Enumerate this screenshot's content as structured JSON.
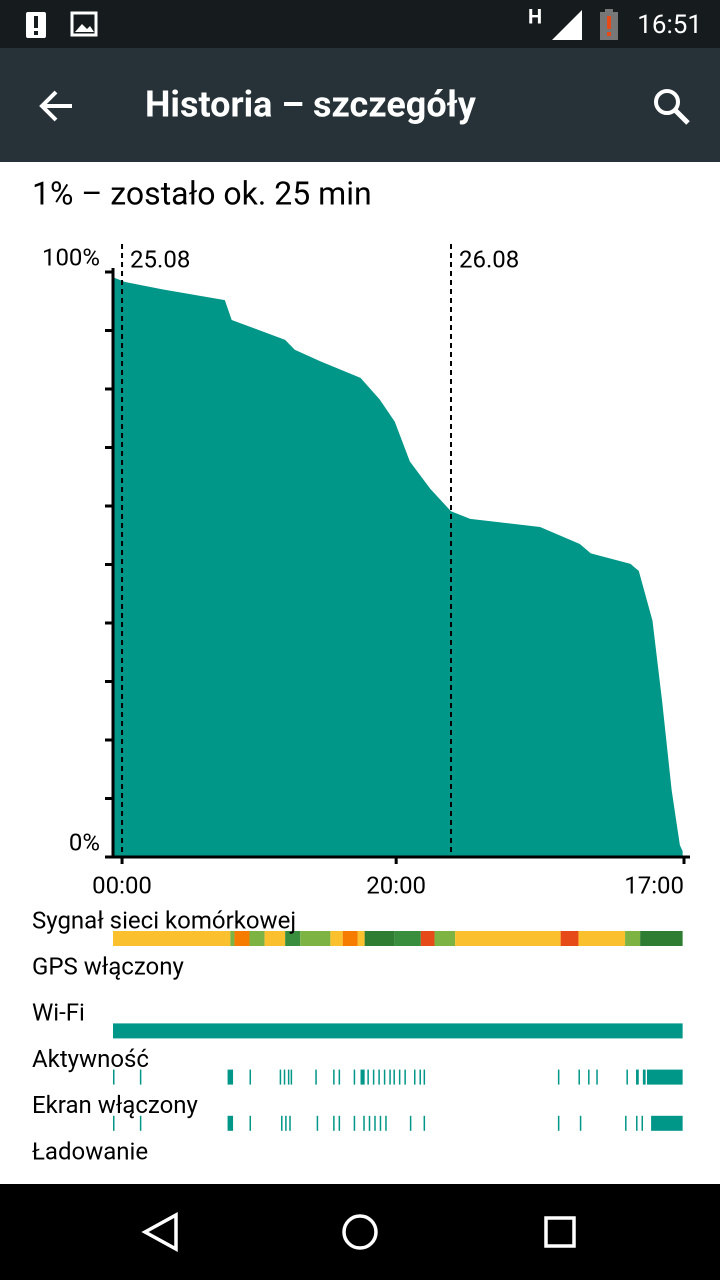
{
  "status_bar": {
    "network": "H",
    "time": "16:51"
  },
  "header": {
    "title": "Historia – szczegóły"
  },
  "summary": "1% – zostało ok. 25 min",
  "chart_data": {
    "type": "area",
    "color": "#009688",
    "x": [
      -0.66,
      0.22,
      3.0,
      7.5,
      8.0,
      11.9,
      12.6,
      14.5,
      17.4,
      18.8,
      19.9,
      21.0,
      22.5,
      24.0,
      25.4,
      30.5,
      33.4,
      34.2,
      37.1,
      37.7,
      38.7,
      39.4,
      40.1,
      40.7,
      40.9
    ],
    "values": [
      99.1,
      98.3,
      97.0,
      95.2,
      91.8,
      88.4,
      86.7,
      84.7,
      81.9,
      78.2,
      74.4,
      67.6,
      62.9,
      59.1,
      57.8,
      56.4,
      53.5,
      51.9,
      50.1,
      48.9,
      40.4,
      26.7,
      11.4,
      2.0,
      1
    ],
    "xlim": [
      -0.66,
      41.0
    ],
    "ylim": [
      0,
      100
    ],
    "xticks": [
      {
        "value": 0,
        "label": "00:00"
      },
      {
        "value": 20,
        "label": "20:00"
      },
      {
        "value": 41,
        "label": "17:00"
      }
    ],
    "yticks": [
      {
        "value": 0,
        "label": "0%"
      },
      {
        "value": 100,
        "label": "100%"
      }
    ],
    "yminor_ticks": [
      10,
      20,
      30,
      40,
      50,
      60,
      70,
      80,
      90
    ],
    "date_lines": [
      {
        "value": 0,
        "label": "25.08"
      },
      {
        "value": 24,
        "label": "26.08"
      }
    ],
    "tracks": [
      {
        "name": "Sygnał sieci komórkowej",
        "segments": [
          {
            "x": [
              -0.66,
              7.9
            ],
            "color": "#fbc02d"
          },
          {
            "x": [
              7.9,
              8.2
            ],
            "color": "#7cb342"
          },
          {
            "x": [
              8.2,
              9.3
            ],
            "color": "#f57c00"
          },
          {
            "x": [
              9.3,
              10.4
            ],
            "color": "#7cb342"
          },
          {
            "x": [
              10.4,
              11.9
            ],
            "color": "#fbc02d"
          },
          {
            "x": [
              11.9,
              13.0
            ],
            "color": "#388e3c"
          },
          {
            "x": [
              13.0,
              15.2
            ],
            "color": "#7cb342"
          },
          {
            "x": [
              15.2,
              16.1
            ],
            "color": "#fbc02d"
          },
          {
            "x": [
              16.1,
              17.2
            ],
            "color": "#f57c00"
          },
          {
            "x": [
              17.2,
              17.7
            ],
            "color": "#fbc02d"
          },
          {
            "x": [
              17.7,
              19.9
            ],
            "color": "#2e7d32"
          },
          {
            "x": [
              19.9,
              21.8
            ],
            "color": "#388e3c"
          },
          {
            "x": [
              21.8,
              22.8
            ],
            "color": "#e64a19"
          },
          {
            "x": [
              22.8,
              24.3
            ],
            "color": "#7cb342"
          },
          {
            "x": [
              24.3,
              32.0
            ],
            "color": "#fbc02d"
          },
          {
            "x": [
              32.0,
              33.3
            ],
            "color": "#e64a19"
          },
          {
            "x": [
              33.3,
              36.7
            ],
            "color": "#fbc02d"
          },
          {
            "x": [
              36.7,
              37.8
            ],
            "color": "#7cb342"
          },
          {
            "x": [
              37.8,
              40.9
            ],
            "color": "#2e7d32"
          }
        ]
      },
      {
        "name": "GPS włączony",
        "segments": []
      },
      {
        "name": "Wi-Fi",
        "segments": [
          {
            "x": [
              -0.66,
              40.9
            ],
            "color": "#009688"
          }
        ]
      },
      {
        "name": "Aktywność",
        "segments": [
          {
            "x": [
              -0.66,
              -0.55
            ],
            "color": "#009688"
          },
          {
            "x": [
              1.3,
              1.4
            ],
            "color": "#009688"
          },
          {
            "x": [
              7.7,
              8.1
            ],
            "color": "#009688"
          },
          {
            "x": [
              9.3,
              9.4
            ],
            "color": "#009688"
          },
          {
            "x": [
              11.5,
              11.6
            ],
            "color": "#009688"
          },
          {
            "x": [
              11.8,
              11.9
            ],
            "color": "#009688"
          },
          {
            "x": [
              12.1,
              12.2
            ],
            "color": "#009688"
          },
          {
            "x": [
              12.3,
              12.4
            ],
            "color": "#009688"
          },
          {
            "x": [
              14.1,
              14.2
            ],
            "color": "#009688"
          },
          {
            "x": [
              15.4,
              15.5
            ],
            "color": "#009688"
          },
          {
            "x": [
              15.8,
              15.9
            ],
            "color": "#009688"
          },
          {
            "x": [
              16.9,
              17.0
            ],
            "color": "#009688"
          },
          {
            "x": [
              17.4,
              17.7
            ],
            "color": "#009688"
          },
          {
            "x": [
              17.9,
              18.0
            ],
            "color": "#009688"
          },
          {
            "x": [
              18.3,
              18.4
            ],
            "color": "#009688"
          },
          {
            "x": [
              18.7,
              18.8
            ],
            "color": "#009688"
          },
          {
            "x": [
              19.1,
              19.2
            ],
            "color": "#009688"
          },
          {
            "x": [
              19.5,
              19.6
            ],
            "color": "#009688"
          },
          {
            "x": [
              19.8,
              19.9
            ],
            "color": "#009688"
          },
          {
            "x": [
              20.2,
              20.3
            ],
            "color": "#009688"
          },
          {
            "x": [
              20.6,
              20.7
            ],
            "color": "#009688"
          },
          {
            "x": [
              21.3,
              21.4
            ],
            "color": "#009688"
          },
          {
            "x": [
              21.7,
              21.8
            ],
            "color": "#009688"
          },
          {
            "x": [
              22.0,
              22.1
            ],
            "color": "#009688"
          },
          {
            "x": [
              31.8,
              31.9
            ],
            "color": "#009688"
          },
          {
            "x": [
              33.3,
              33.4
            ],
            "color": "#009688"
          },
          {
            "x": [
              34.0,
              34.1
            ],
            "color": "#009688"
          },
          {
            "x": [
              34.6,
              34.7
            ],
            "color": "#009688"
          },
          {
            "x": [
              36.8,
              36.9
            ],
            "color": "#009688"
          },
          {
            "x": [
              37.5,
              37.7
            ],
            "color": "#009688"
          },
          {
            "x": [
              38.0,
              38.2
            ],
            "color": "#009688"
          },
          {
            "x": [
              38.3,
              40.9
            ],
            "color": "#009688"
          }
        ]
      },
      {
        "name": "Ekran włączony",
        "segments": [
          {
            "x": [
              -0.66,
              -0.55
            ],
            "color": "#009688"
          },
          {
            "x": [
              1.3,
              1.4
            ],
            "color": "#009688"
          },
          {
            "x": [
              7.7,
              8.1
            ],
            "color": "#009688"
          },
          {
            "x": [
              9.3,
              9.4
            ],
            "color": "#009688"
          },
          {
            "x": [
              11.6,
              11.7
            ],
            "color": "#009688"
          },
          {
            "x": [
              11.9,
              12.0
            ],
            "color": "#009688"
          },
          {
            "x": [
              12.2,
              12.3
            ],
            "color": "#009688"
          },
          {
            "x": [
              14.2,
              14.3
            ],
            "color": "#009688"
          },
          {
            "x": [
              15.4,
              15.5
            ],
            "color": "#009688"
          },
          {
            "x": [
              15.8,
              15.9
            ],
            "color": "#009688"
          },
          {
            "x": [
              16.9,
              17.0
            ],
            "color": "#009688"
          },
          {
            "x": [
              17.6,
              17.7
            ],
            "color": "#009688"
          },
          {
            "x": [
              18.0,
              18.1
            ],
            "color": "#009688"
          },
          {
            "x": [
              18.4,
              18.5
            ],
            "color": "#009688"
          },
          {
            "x": [
              18.8,
              18.9
            ],
            "color": "#009688"
          },
          {
            "x": [
              19.2,
              19.3
            ],
            "color": "#009688"
          },
          {
            "x": [
              21.0,
              21.1
            ],
            "color": "#009688"
          },
          {
            "x": [
              22.0,
              22.1
            ],
            "color": "#009688"
          },
          {
            "x": [
              31.8,
              31.9
            ],
            "color": "#009688"
          },
          {
            "x": [
              33.4,
              33.5
            ],
            "color": "#009688"
          },
          {
            "x": [
              36.7,
              36.8
            ],
            "color": "#009688"
          },
          {
            "x": [
              37.5,
              37.6
            ],
            "color": "#009688"
          },
          {
            "x": [
              37.9,
              38.0
            ],
            "color": "#009688"
          },
          {
            "x": [
              38.6,
              40.9
            ],
            "color": "#009688"
          }
        ]
      },
      {
        "name": "Ładowanie",
        "segments": []
      }
    ]
  }
}
